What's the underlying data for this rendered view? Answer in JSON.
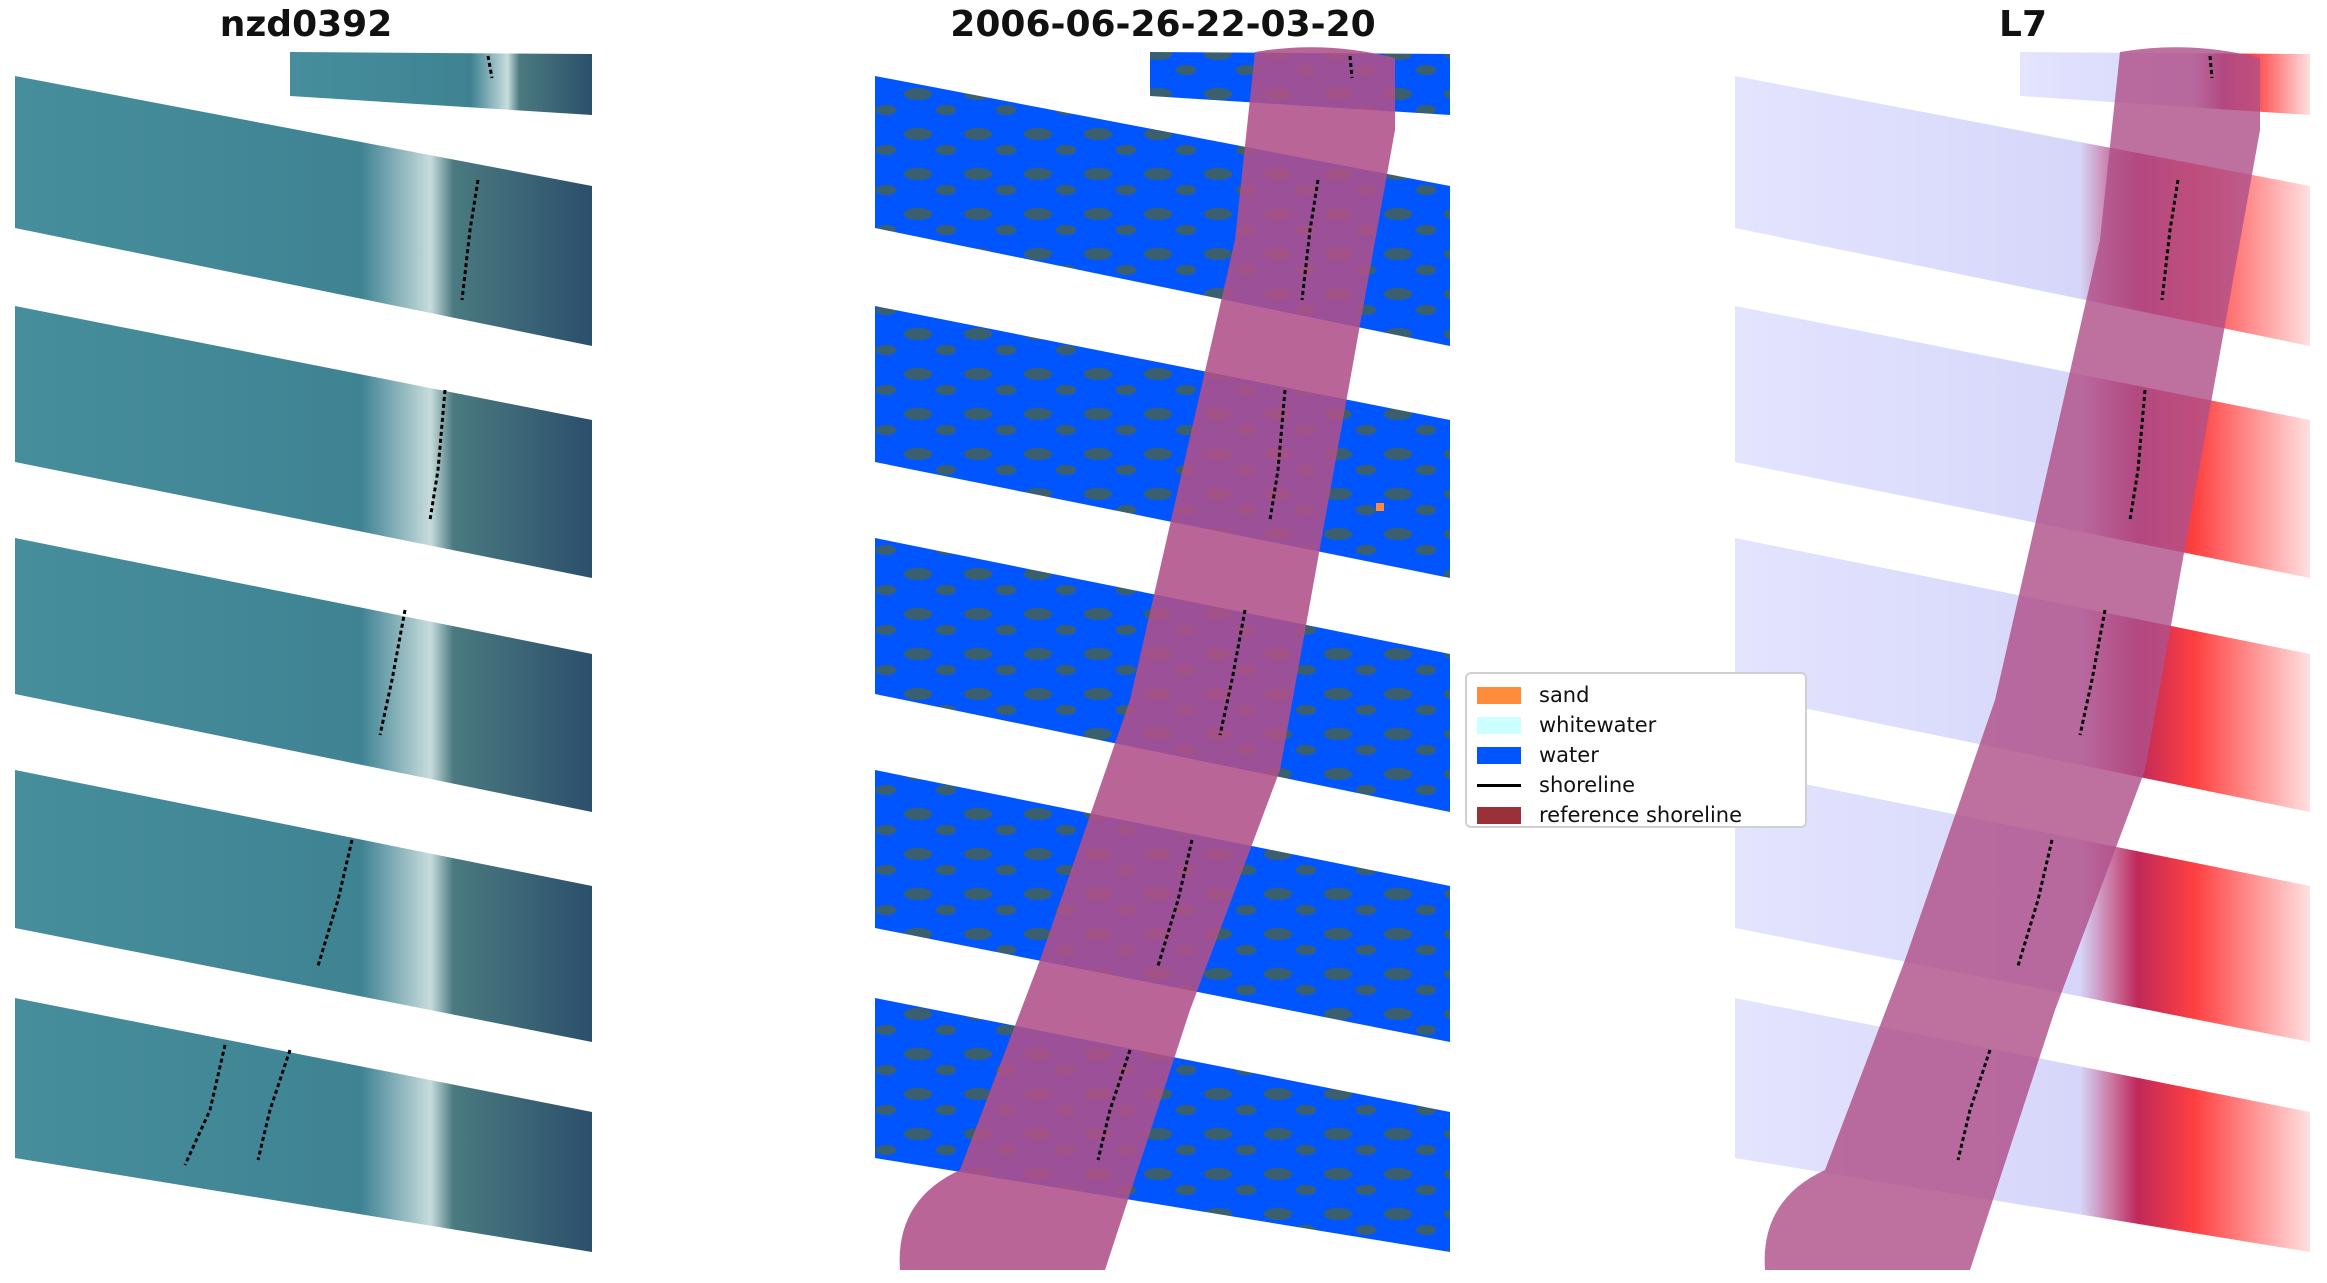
{
  "panels": [
    {
      "title": "nzd0392"
    },
    {
      "title": "2006-06-26-22-03-20"
    },
    {
      "title": "L7"
    }
  ],
  "legend": {
    "items": [
      {
        "label": "sand",
        "color": "#ff8c3a"
      },
      {
        "label": "whitewater",
        "color": "#ccffff"
      },
      {
        "label": "water",
        "color": "#0055ff"
      },
      {
        "label": "shoreline",
        "color": "#000000"
      },
      {
        "label": "reference shoreline",
        "color": "#9a3038"
      }
    ]
  },
  "colors": {
    "rgb_sea": "#3f8a98",
    "rgb_land": "#2f5570",
    "class_water": "#0055ff",
    "class_land": "#3a6070",
    "reference_buffer": "#b0508a",
    "ndwi_low": "#dcdcff",
    "ndwi_high": "#ff1010"
  }
}
